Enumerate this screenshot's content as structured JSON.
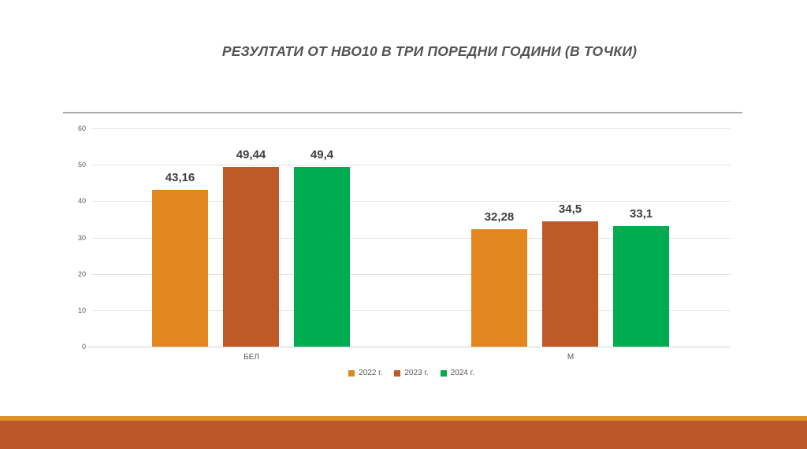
{
  "title": "РЕЗУЛТАТИ ОТ НВО10 В ТРИ ПОРЕДНИ ГОДИНИ (В ТОЧКИ)",
  "chart_data": {
    "type": "bar",
    "title": "РЕЗУЛТАТИ ОТ НВО10 В ТРИ ПОРЕДНИ ГОДИНИ (В ТОЧКИ)",
    "categories": [
      "БЕЛ",
      "М"
    ],
    "series": [
      {
        "name": "2022 г.",
        "color": "#E2871D",
        "values": [
          43.16,
          32.28
        ],
        "labels": [
          "43,16",
          "32,28"
        ]
      },
      {
        "name": "2023 г.",
        "color": "#BE5A27",
        "values": [
          49.44,
          34.5
        ],
        "labels": [
          "49,44",
          "34,5"
        ]
      },
      {
        "name": "2024 г.",
        "color": "#00AC50",
        "values": [
          49.4,
          33.1
        ],
        "labels": [
          "49,4",
          "33,1"
        ]
      }
    ],
    "xlabel": "",
    "ylabel": "",
    "ylim": [
      0,
      60
    ],
    "yticks": [
      0,
      10,
      20,
      30,
      40,
      50,
      60
    ],
    "grid": true,
    "legend_position": "bottom"
  },
  "colors": {
    "accent_orange": "#E2871D",
    "accent_brown": "#BE5A27",
    "accent_green": "#00AC50",
    "title_text": "#545454",
    "axis_text": "#595959",
    "value_label_text": "#3F3F3F",
    "gridline": "#E2E2E2",
    "separator_line": "#ABABAB",
    "footer_stripe": "#DD9126",
    "footer_block": "#BC5827"
  }
}
